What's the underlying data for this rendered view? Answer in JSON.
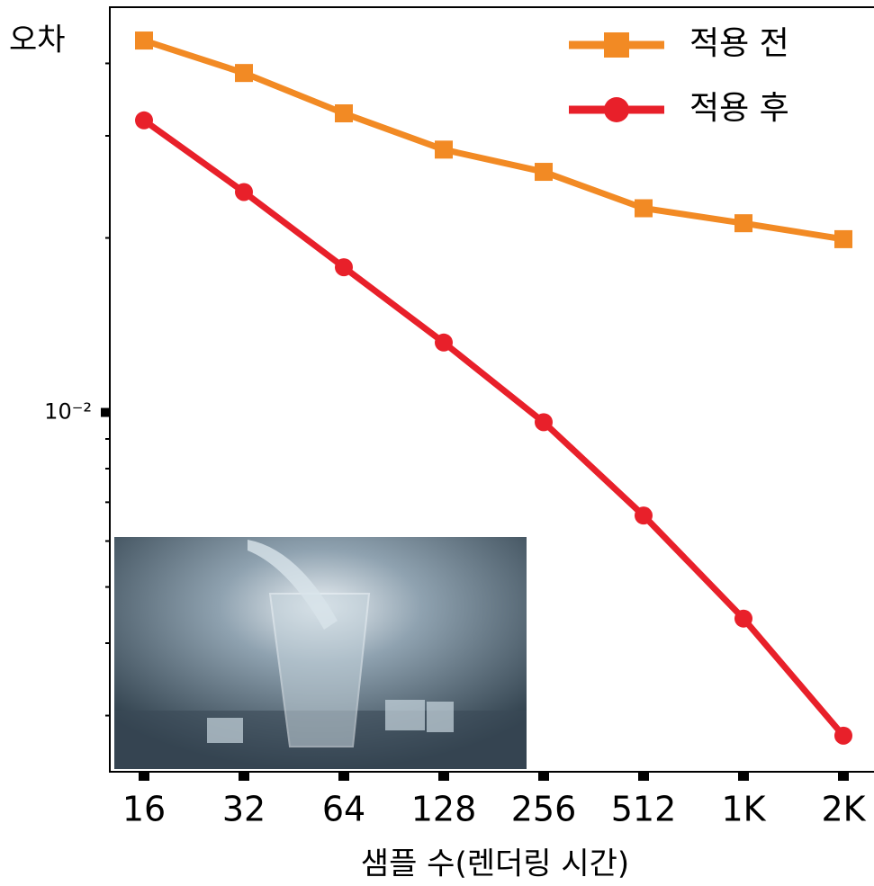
{
  "chart_data": {
    "type": "line",
    "y_label": "오차",
    "x_label": "샘플 수(렌더링 시간)",
    "categories": [
      "16",
      "32",
      "64",
      "128",
      "256",
      "512",
      "1K",
      "2K"
    ],
    "series": [
      {
        "name": "적용 전",
        "color": "#f28a24",
        "marker": "square",
        "values": [
          0.0438,
          0.0385,
          0.0328,
          0.0284,
          0.026,
          0.0225,
          0.0212,
          0.0199
        ]
      },
      {
        "name": "적용 후",
        "color": "#e8202a",
        "marker": "circle",
        "values": [
          0.0319,
          0.024,
          0.0178,
          0.0132,
          0.00962,
          0.00664,
          0.00441,
          0.00277
        ]
      }
    ],
    "log_y": true,
    "ylim": [
      0.0024,
      0.05
    ],
    "yticks": [
      {
        "value": 0.01,
        "label": "10⁻²"
      }
    ],
    "yminorticks": [
      0.003,
      0.004,
      0.005,
      0.006,
      0.007,
      0.008,
      0.009,
      0.02,
      0.03,
      0.04
    ],
    "legend": "upper right"
  }
}
